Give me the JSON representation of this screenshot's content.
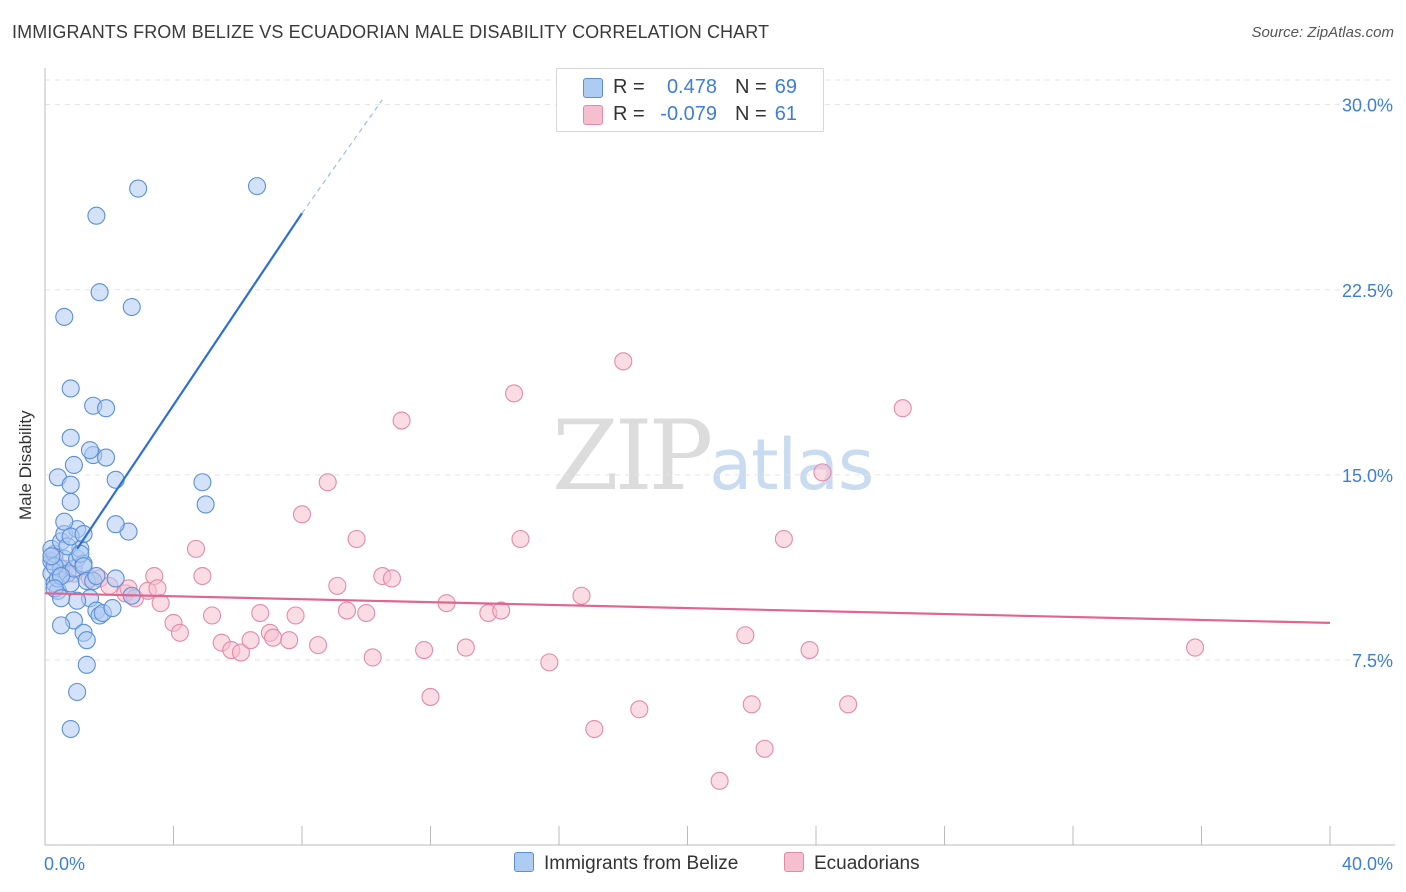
{
  "header": {
    "title": "IMMIGRANTS FROM BELIZE VS ECUADORIAN MALE DISABILITY CORRELATION CHART",
    "source": "Source: ZipAtlas.com"
  },
  "watermark": {
    "zip": "ZIP",
    "atlas": "atlas"
  },
  "legend": {
    "r_label": "R =",
    "n_label": "N =",
    "series1": {
      "r": "0.478",
      "n": "69"
    },
    "series2": {
      "r": "-0.079",
      "n": "61"
    }
  },
  "colors": {
    "blue_fill": "#aecbf2",
    "blue_stroke": "#5b8fd8",
    "blue_line": "#2f6fd0",
    "pink_fill": "#f6bfd0",
    "pink_stroke": "#e48aa8",
    "pink_line": "#e06690",
    "tick_text": "#3d7fd6"
  },
  "chart_data": {
    "type": "scatter",
    "title": "IMMIGRANTS FROM BELIZE VS ECUADORIAN MALE DISABILITY CORRELATION CHART",
    "xlabel": "",
    "ylabel": "Male Disability",
    "xlim": [
      0,
      40
    ],
    "ylim": [
      0,
      31
    ],
    "x_tick_labels": [
      "0.0%",
      "40.0%"
    ],
    "y_ticks": [
      7.5,
      15.0,
      22.5,
      30.0
    ],
    "y_tick_labels": [
      "7.5%",
      "15.0%",
      "22.5%",
      "30.0%"
    ],
    "grid": true,
    "series": [
      {
        "name": "Immigrants from Belize",
        "color": "blue",
        "trend": {
          "x": [
            1.0,
            8.0
          ],
          "y": [
            12.0,
            25.6
          ],
          "dashed_to": [
            10.5,
            30.2
          ]
        },
        "points": [
          [
            0.2,
            11.0
          ],
          [
            0.3,
            10.6
          ],
          [
            0.2,
            11.5
          ],
          [
            0.4,
            10.3
          ],
          [
            0.3,
            11.8
          ],
          [
            0.5,
            11.2
          ],
          [
            0.4,
            10.8
          ],
          [
            0.6,
            11.6
          ],
          [
            0.2,
            12.0
          ],
          [
            0.5,
            12.3
          ],
          [
            0.7,
            11.0
          ],
          [
            0.8,
            10.6
          ],
          [
            0.6,
            12.6
          ],
          [
            0.9,
            11.2
          ],
          [
            1.0,
            11.6
          ],
          [
            1.1,
            12.0
          ],
          [
            0.3,
            11.3
          ],
          [
            0.5,
            10.9
          ],
          [
            0.7,
            12.1
          ],
          [
            1.2,
            11.4
          ],
          [
            1.0,
            12.8
          ],
          [
            0.6,
            13.1
          ],
          [
            0.8,
            12.5
          ],
          [
            1.2,
            12.6
          ],
          [
            0.4,
            14.9
          ],
          [
            0.8,
            13.9
          ],
          [
            0.9,
            15.4
          ],
          [
            0.8,
            14.6
          ],
          [
            0.8,
            16.5
          ],
          [
            1.5,
            15.8
          ],
          [
            1.4,
            16.0
          ],
          [
            1.1,
            11.8
          ],
          [
            1.2,
            11.3
          ],
          [
            1.3,
            10.7
          ],
          [
            1.4,
            10.0
          ],
          [
            1.5,
            10.7
          ],
          [
            1.6,
            9.5
          ],
          [
            1.0,
            9.9
          ],
          [
            0.9,
            9.1
          ],
          [
            0.5,
            8.9
          ],
          [
            1.2,
            8.6
          ],
          [
            1.3,
            8.3
          ],
          [
            1.7,
            9.3
          ],
          [
            1.8,
            9.4
          ],
          [
            1.3,
            7.3
          ],
          [
            1.0,
            6.2
          ],
          [
            0.8,
            4.7
          ],
          [
            1.9,
            15.7
          ],
          [
            2.2,
            14.8
          ],
          [
            2.6,
            12.7
          ],
          [
            2.2,
            13.0
          ],
          [
            2.7,
            10.1
          ],
          [
            2.2,
            10.8
          ],
          [
            1.5,
            17.8
          ],
          [
            1.9,
            17.7
          ],
          [
            0.8,
            18.5
          ],
          [
            0.6,
            21.4
          ],
          [
            1.7,
            22.4
          ],
          [
            2.7,
            21.8
          ],
          [
            1.6,
            25.5
          ],
          [
            2.9,
            26.6
          ],
          [
            6.6,
            26.7
          ],
          [
            5.0,
            13.8
          ],
          [
            4.9,
            14.7
          ],
          [
            0.3,
            10.4
          ],
          [
            0.5,
            10.0
          ],
          [
            1.6,
            10.9
          ],
          [
            2.1,
            9.6
          ],
          [
            0.2,
            11.7
          ]
        ]
      },
      {
        "name": "Ecuadorians",
        "color": "pink",
        "trend": {
          "x": [
            0.0,
            40.0
          ],
          "y": [
            10.2,
            9.0
          ]
        },
        "points": [
          [
            0.3,
            11.6
          ],
          [
            0.6,
            11.2
          ],
          [
            0.9,
            11.0
          ],
          [
            1.4,
            10.8
          ],
          [
            1.7,
            10.8
          ],
          [
            2.0,
            10.5
          ],
          [
            2.5,
            10.2
          ],
          [
            2.6,
            10.4
          ],
          [
            2.8,
            10.0
          ],
          [
            3.2,
            10.3
          ],
          [
            3.4,
            10.9
          ],
          [
            3.5,
            10.4
          ],
          [
            3.6,
            9.8
          ],
          [
            4.0,
            9.0
          ],
          [
            4.2,
            8.6
          ],
          [
            4.7,
            12.0
          ],
          [
            4.9,
            10.9
          ],
          [
            5.2,
            9.3
          ],
          [
            5.5,
            8.2
          ],
          [
            5.8,
            7.9
          ],
          [
            6.1,
            7.8
          ],
          [
            6.4,
            8.3
          ],
          [
            6.7,
            9.4
          ],
          [
            7.0,
            8.6
          ],
          [
            7.6,
            8.3
          ],
          [
            7.8,
            9.3
          ],
          [
            8.0,
            13.4
          ],
          [
            8.5,
            8.1
          ],
          [
            8.8,
            14.7
          ],
          [
            9.1,
            10.5
          ],
          [
            9.4,
            9.5
          ],
          [
            9.7,
            12.4
          ],
          [
            10.0,
            9.4
          ],
          [
            10.2,
            7.6
          ],
          [
            10.5,
            10.9
          ],
          [
            10.8,
            10.8
          ],
          [
            11.1,
            17.2
          ],
          [
            11.8,
            7.9
          ],
          [
            12.0,
            6.0
          ],
          [
            12.5,
            9.8
          ],
          [
            13.1,
            8.0
          ],
          [
            13.8,
            9.4
          ],
          [
            14.2,
            9.5
          ],
          [
            14.6,
            18.3
          ],
          [
            14.8,
            12.4
          ],
          [
            15.7,
            7.4
          ],
          [
            16.7,
            10.1
          ],
          [
            17.1,
            4.7
          ],
          [
            18.0,
            19.6
          ],
          [
            18.5,
            5.5
          ],
          [
            21.0,
            2.6
          ],
          [
            21.8,
            8.5
          ],
          [
            22.0,
            5.7
          ],
          [
            22.4,
            3.9
          ],
          [
            23.0,
            12.4
          ],
          [
            23.8,
            7.9
          ],
          [
            24.2,
            15.1
          ],
          [
            25.0,
            5.7
          ],
          [
            26.7,
            17.7
          ],
          [
            35.8,
            8.0
          ],
          [
            7.1,
            8.4
          ]
        ]
      }
    ]
  }
}
